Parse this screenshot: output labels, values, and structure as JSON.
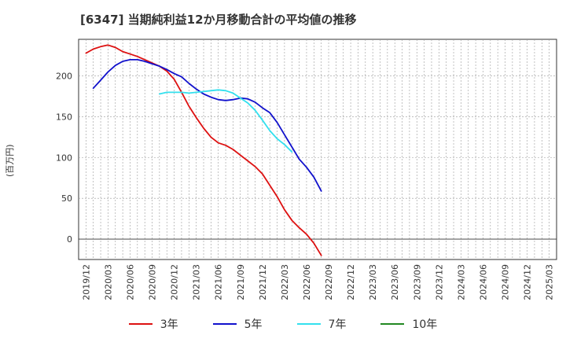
{
  "title": "[6347]  当期純利益12か月移動合計の平均値の推移",
  "y_unit": "(百万円)",
  "chart_data": {
    "type": "line",
    "ylim": [
      -25,
      245
    ],
    "y_ticks": [
      0,
      50,
      100,
      150,
      200
    ],
    "y_tick_labels": [
      "0",
      "50",
      "100",
      "150",
      "200"
    ],
    "x_tick_labels": [
      "2019/12",
      "2020/03",
      "2020/06",
      "2020/09",
      "2020/12",
      "2021/03",
      "2021/06",
      "2021/09",
      "2021/12",
      "2022/03",
      "2022/06",
      "2022/09",
      "2022/12",
      "2023/03",
      "2023/06",
      "2023/09",
      "2023/12",
      "2024/03",
      "2024/06",
      "2024/09",
      "2024/12",
      "2025/03"
    ],
    "grid": true,
    "legend_position": "bottom",
    "series": [
      {
        "name": "3年",
        "color": "#dd1111",
        "values": [
          228,
          233,
          236,
          238,
          235,
          230,
          227,
          224,
          220,
          216,
          212,
          206,
          196,
          180,
          163,
          149,
          136,
          125,
          118,
          115,
          110,
          103,
          96,
          89,
          80,
          66,
          52,
          36,
          23,
          14,
          6,
          -5,
          -20
        ]
      },
      {
        "name": "5年",
        "color": "#1111cc",
        "start_index": 1,
        "values": [
          185,
          195,
          205,
          213,
          218,
          220,
          220,
          218,
          215,
          212,
          208,
          203,
          199,
          191,
          184,
          178,
          174,
          171,
          170,
          171,
          173,
          172,
          168,
          161,
          155,
          143,
          128,
          113,
          98,
          88,
          76,
          59
        ]
      },
      {
        "name": "7年",
        "color": "#33e0ee",
        "start_index": 10,
        "values": [
          178,
          180,
          180,
          180,
          179,
          180,
          181,
          182,
          183,
          182,
          179,
          173,
          167,
          158,
          146,
          133,
          123,
          116,
          107
        ]
      },
      {
        "name": "10年",
        "color": "#228822",
        "start_index": 0,
        "values": []
      }
    ]
  }
}
